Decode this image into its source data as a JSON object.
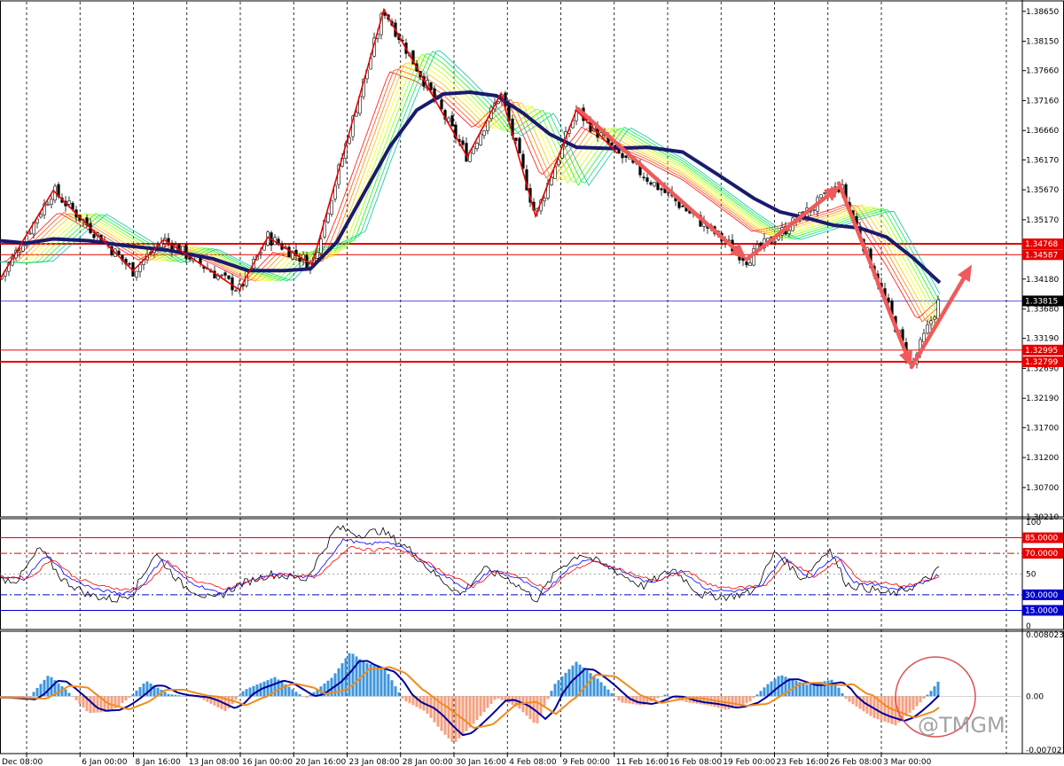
{
  "chart_data": {
    "type": "candlestick",
    "price_panel": {
      "ylim": [
        1.3021,
        1.3875
      ],
      "y_ticks": [
        "1.38650",
        "1.38150",
        "1.37660",
        "1.37160",
        "1.36660",
        "1.36170",
        "1.35670",
        "1.35170",
        "1.34180",
        "1.33680",
        "1.33190",
        "1.32690",
        "1.32190",
        "1.31700",
        "1.31200",
        "1.30700",
        "1.30210"
      ],
      "current_price": "1.33815",
      "horizontal_levels": [
        {
          "label": "1.34768",
          "value": 1.34768,
          "color": "#e60000",
          "width": 2
        },
        {
          "label": "1.34587",
          "value": 1.34587,
          "color": "#e60000",
          "width": 1
        },
        {
          "label": "1.32995",
          "value": 1.32995,
          "color": "#e60000",
          "width": 1
        },
        {
          "label": "1.32799",
          "value": 1.32799,
          "color": "#e60000",
          "width": 2
        }
      ],
      "zigzag_points": [
        [
          0,
          1.3418
        ],
        [
          60,
          1.3566
        ],
        [
          150,
          1.3432
        ],
        [
          185,
          1.3484
        ],
        [
          270,
          1.34
        ],
        [
          302,
          1.3488
        ],
        [
          352,
          1.3442
        ],
        [
          433,
          1.3868
        ],
        [
          527,
          1.3622
        ],
        [
          565,
          1.3728
        ],
        [
          604,
          1.3523
        ],
        [
          650,
          1.37
        ],
        [
          696,
          1.3628
        ]
      ],
      "arrows": [
        {
          "from": [
            652,
            1.3702
          ],
          "to": [
            842,
            1.3451
          ]
        },
        {
          "from": [
            842,
            1.3451
          ],
          "to": [
            948,
            1.3574
          ]
        },
        {
          "from": [
            946,
            1.3578
          ],
          "to": [
            1028,
            1.3271
          ]
        },
        {
          "from": [
            1028,
            1.3271
          ],
          "to": [
            1096,
            1.3442
          ]
        }
      ],
      "slow_ma_points": [
        [
          0,
          1.3482
        ],
        [
          30,
          1.3478
        ],
        [
          60,
          1.3485
        ],
        [
          100,
          1.3482
        ],
        [
          140,
          1.3474
        ],
        [
          190,
          1.3466
        ],
        [
          240,
          1.3452
        ],
        [
          280,
          1.3432
        ],
        [
          320,
          1.3432
        ],
        [
          350,
          1.3435
        ],
        [
          380,
          1.348
        ],
        [
          410,
          1.356
        ],
        [
          440,
          1.364
        ],
        [
          470,
          1.37
        ],
        [
          500,
          1.3727
        ],
        [
          530,
          1.373
        ],
        [
          560,
          1.3724
        ],
        [
          590,
          1.3695
        ],
        [
          620,
          1.366
        ],
        [
          650,
          1.3638
        ],
        [
          690,
          1.3636
        ],
        [
          730,
          1.3638
        ],
        [
          770,
          1.363
        ],
        [
          810,
          1.3592
        ],
        [
          850,
          1.3553
        ],
        [
          880,
          1.353
        ],
        [
          910,
          1.352
        ],
        [
          940,
          1.3508
        ],
        [
          970,
          1.3503
        ],
        [
          1000,
          1.3488
        ],
        [
          1030,
          1.3453
        ],
        [
          1060,
          1.3412
        ]
      ]
    },
    "stochastic_panel": {
      "ylim": [
        0,
        100
      ],
      "y_ticks": [
        "100",
        "50",
        "0"
      ],
      "levels": [
        {
          "label": "85.0000",
          "value": 85,
          "style": "solid",
          "color": "#e60000"
        },
        {
          "label": "70.0000",
          "value": 70,
          "style": "dashdot",
          "color": "#e60000"
        },
        {
          "label": "30.0000",
          "value": 30,
          "style": "dashdot",
          "color": "#0000cc"
        },
        {
          "label": "15.0000",
          "value": 15,
          "style": "solid",
          "color": "#0000cc"
        }
      ],
      "line_points": [
        [
          0,
          45
        ],
        [
          20,
          44
        ],
        [
          45,
          75
        ],
        [
          70,
          45
        ],
        [
          100,
          30
        ],
        [
          130,
          25
        ],
        [
          150,
          32
        ],
        [
          175,
          70
        ],
        [
          205,
          40
        ],
        [
          240,
          25
        ],
        [
          270,
          40
        ],
        [
          305,
          50
        ],
        [
          345,
          45
        ],
        [
          380,
          95
        ],
        [
          405,
          88
        ],
        [
          430,
          92
        ],
        [
          460,
          75
        ],
        [
          490,
          50
        ],
        [
          520,
          30
        ],
        [
          545,
          55
        ],
        [
          575,
          45
        ],
        [
          605,
          25
        ],
        [
          630,
          55
        ],
        [
          655,
          70
        ],
        [
          690,
          55
        ],
        [
          725,
          38
        ],
        [
          760,
          55
        ],
        [
          790,
          30
        ],
        [
          820,
          28
        ],
        [
          850,
          33
        ],
        [
          875,
          72
        ],
        [
          905,
          45
        ],
        [
          935,
          75
        ],
        [
          955,
          40
        ],
        [
          985,
          35
        ],
        [
          1005,
          30
        ],
        [
          1030,
          38
        ],
        [
          1045,
          45
        ],
        [
          1060,
          55
        ]
      ]
    },
    "macd_panel": {
      "y_ticks": [
        "0.0080237",
        "0.00",
        "-0.007021"
      ],
      "ylim": [
        -0.007021,
        0.0080237
      ],
      "hist_points": [
        [
          0,
          -0.0002
        ],
        [
          30,
          -0.0005
        ],
        [
          55,
          0.0028
        ],
        [
          75,
          0.0008
        ],
        [
          100,
          -0.0022
        ],
        [
          125,
          -0.002
        ],
        [
          145,
          -0.0003
        ],
        [
          165,
          0.002
        ],
        [
          190,
          0.0003
        ],
        [
          225,
          -0.0002
        ],
        [
          255,
          -0.002
        ],
        [
          275,
          0.0008
        ],
        [
          310,
          0.0025
        ],
        [
          345,
          -0.0003
        ],
        [
          375,
          0.0025
        ],
        [
          395,
          0.0058
        ],
        [
          410,
          0.0045
        ],
        [
          435,
          0.0035
        ],
        [
          455,
          -0.0005
        ],
        [
          480,
          -0.002
        ],
        [
          500,
          -0.0048
        ],
        [
          512,
          -0.0062
        ],
        [
          535,
          -0.0035
        ],
        [
          560,
          -0.0002
        ],
        [
          585,
          -0.0015
        ],
        [
          605,
          -0.0038
        ],
        [
          625,
          0.0015
        ],
        [
          650,
          0.0045
        ],
        [
          675,
          0.0022
        ],
        [
          700,
          -0.0008
        ],
        [
          725,
          -0.0012
        ],
        [
          750,
          0.0002
        ],
        [
          775,
          -0.0008
        ],
        [
          800,
          -0.0012
        ],
        [
          820,
          -0.0018
        ],
        [
          845,
          -0.0008
        ],
        [
          865,
          0.0015
        ],
        [
          880,
          0.0028
        ],
        [
          910,
          0.0015
        ],
        [
          940,
          0.0022
        ],
        [
          955,
          -0.0005
        ],
        [
          985,
          -0.0028
        ],
        [
          1010,
          -0.0038
        ],
        [
          1030,
          -0.0018
        ],
        [
          1050,
          0.0007
        ],
        [
          1060,
          0.0022
        ]
      ]
    },
    "x_labels": [
      "Dec 08:00",
      "6 Jan 00:00",
      "8 Jan 16:00",
      "13 Jan 08:00",
      "16 Jan 00:00",
      "20 Jan 16:00",
      "23 Jan 08:00",
      "28 Jan 00:00",
      "30 Jan 16:00",
      "4 Feb 08:00",
      "9 Feb 00:00",
      "11 Feb 16:00",
      "16 Feb 08:00",
      "19 Feb 00:00",
      "23 Feb 16:00",
      "26 Feb 08:00",
      "3 Mar 00:00"
    ],
    "colors": {
      "zigzag": "#e60000",
      "arrow": "#f05a5a",
      "slow_ma": "#1a1a6e",
      "bull_candle": "#ffffff",
      "bear_candle": "#000000",
      "macd_hist_up": "#3c96dc",
      "macd_hist_down": "#f5a080",
      "macd_line": "#000099",
      "signal_line": "#f08c1e",
      "current_price_line": "#0000cc"
    }
  },
  "watermark": {
    "text": "@TMGM"
  }
}
